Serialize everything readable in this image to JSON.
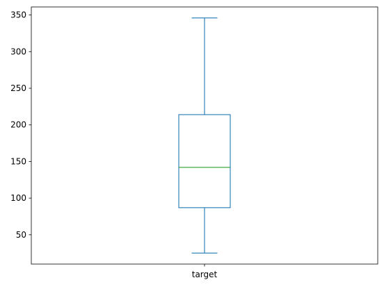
{
  "chart_data": {
    "type": "box",
    "categories": [
      "target"
    ],
    "boxes": [
      {
        "name": "target",
        "whisker_low": 25,
        "q1": 87,
        "median": 142,
        "q3": 214,
        "whisker_high": 346
      }
    ],
    "ylim": [
      10,
      361
    ],
    "yticks": [
      50,
      100,
      150,
      200,
      250,
      300,
      350
    ],
    "ytick_labels": [
      "50",
      "100",
      "150",
      "200",
      "250",
      "300",
      "350"
    ],
    "title": "",
    "xlabel": "",
    "ylabel": "",
    "grid": false,
    "colors": {
      "box": "#1f77b4",
      "median": "#2ca02c",
      "axes": "#000000"
    }
  }
}
